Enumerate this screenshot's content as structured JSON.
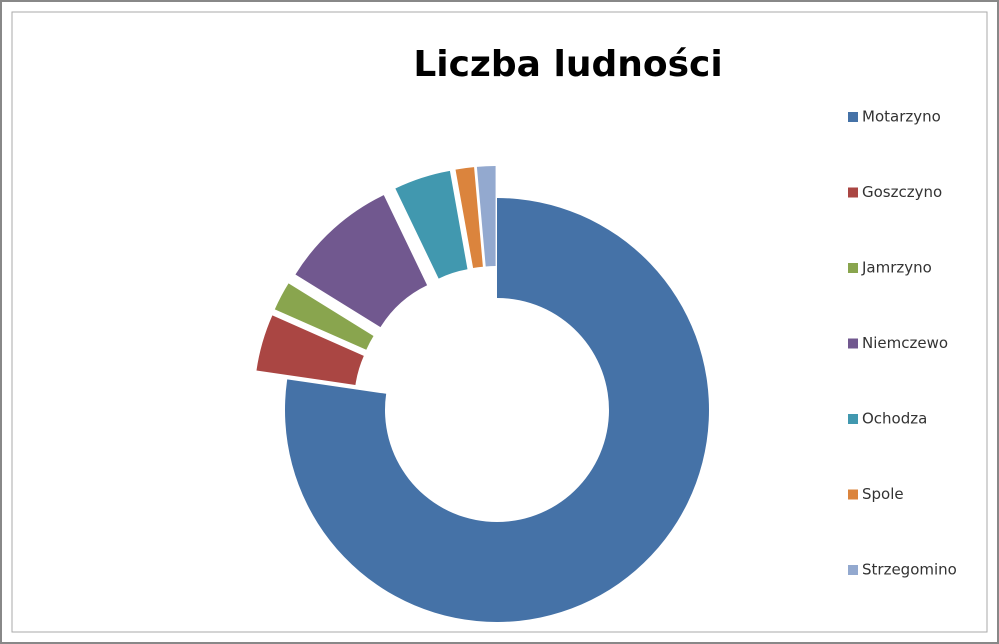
{
  "chart_data": {
    "type": "donut",
    "title": "Liczba ludności",
    "categories": [
      "Motarzyno",
      "Goszczyno",
      "Jamrzyno",
      "Niemczewo",
      "Ochodza",
      "Spole",
      "Strzegomino"
    ],
    "values": [
      77,
      4.3,
      2.2,
      9,
      4.3,
      1.4,
      1.4
    ],
    "colors": [
      "#4572a7",
      "#aa4643",
      "#89a54e",
      "#71588f",
      "#4198af",
      "#db843d",
      "#93a9cf"
    ],
    "exploded": [
      false,
      true,
      true,
      true,
      true,
      true,
      true
    ],
    "legend": "right"
  }
}
